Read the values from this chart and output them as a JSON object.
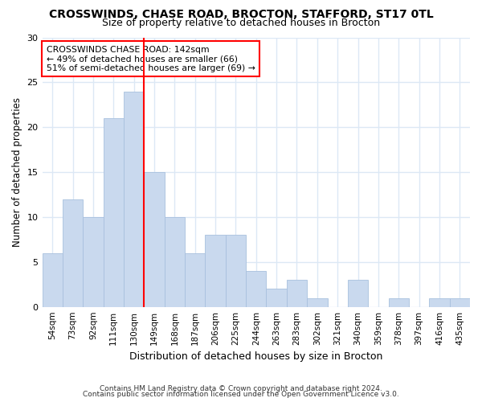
{
  "title": "CROSSWINDS, CHASE ROAD, BROCTON, STAFFORD, ST17 0TL",
  "subtitle": "Size of property relative to detached houses in Brocton",
  "xlabel": "Distribution of detached houses by size in Brocton",
  "ylabel": "Number of detached properties",
  "footer1": "Contains HM Land Registry data © Crown copyright and database right 2024.",
  "footer2": "Contains public sector information licensed under the Open Government Licence v3.0.",
  "categories": [
    "54sqm",
    "73sqm",
    "92sqm",
    "111sqm",
    "130sqm",
    "149sqm",
    "168sqm",
    "187sqm",
    "206sqm",
    "225sqm",
    "244sqm",
    "263sqm",
    "283sqm",
    "302sqm",
    "321sqm",
    "340sqm",
    "359sqm",
    "378sqm",
    "397sqm",
    "416sqm",
    "435sqm"
  ],
  "values": [
    6,
    12,
    10,
    21,
    24,
    15,
    10,
    6,
    8,
    8,
    4,
    2,
    3,
    1,
    0,
    3,
    0,
    1,
    0,
    1,
    1
  ],
  "bar_color": "#c9d9ee",
  "bar_edge_color": "#a8c0de",
  "reference_line_index": 4.5,
  "reference_line_label": "CROSSWINDS CHASE ROAD: 142sqm",
  "annotation_line1": "← 49% of detached houses are smaller (66)",
  "annotation_line2": "51% of semi-detached houses are larger (69) →",
  "annotation_box_facecolor": "white",
  "annotation_box_edgecolor": "red",
  "reference_line_color": "red",
  "ylim": [
    0,
    30
  ],
  "yticks": [
    0,
    5,
    10,
    15,
    20,
    25,
    30
  ],
  "bg_color": "#ffffff",
  "grid_color": "#dce8f5",
  "title_fontsize": 10,
  "subtitle_fontsize": 9
}
